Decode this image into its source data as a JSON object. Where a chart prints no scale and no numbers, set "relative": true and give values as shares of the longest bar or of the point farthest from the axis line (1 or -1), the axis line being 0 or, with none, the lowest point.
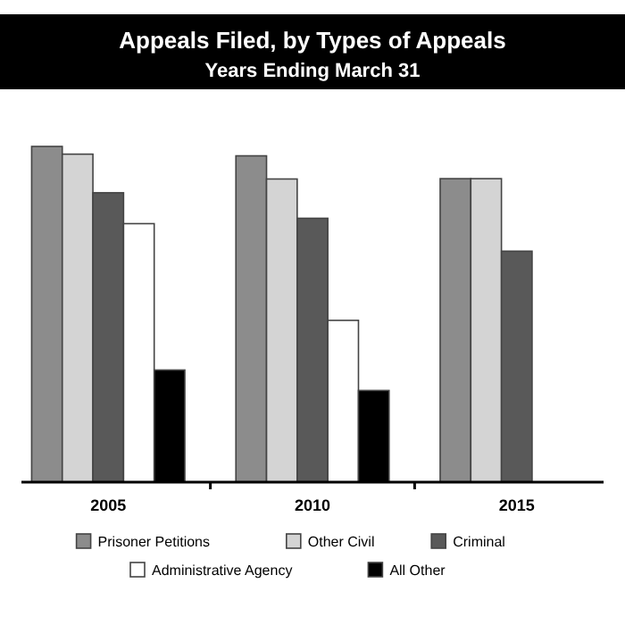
{
  "chart_data": {
    "type": "bar",
    "title": "Appeals Filed, by Types of Appeals",
    "subtitle": "Years Ending March 31",
    "relative": true,
    "categories": [
      "2005",
      "2010",
      "2015"
    ],
    "legend": "bottom",
    "series": [
      {
        "name": "Prisoner Petitions",
        "color": "#8c8c8c",
        "values": [
          1,
          0.972,
          0.904
        ]
      },
      {
        "name": "Other Civil",
        "color": "#d4d4d4",
        "values": [
          0.977,
          0.903,
          0.904
        ]
      },
      {
        "name": "Criminal",
        "color": "#595959",
        "values": [
          0.862,
          0.786,
          0.688
        ]
      },
      {
        "name": "Administrative Agency",
        "color": "#ffffff",
        "values": [
          0.77,
          0.482,
          null
        ]
      },
      {
        "name": "All Other",
        "color": "#000000",
        "values": [
          0.334,
          0.273,
          null
        ]
      }
    ]
  }
}
